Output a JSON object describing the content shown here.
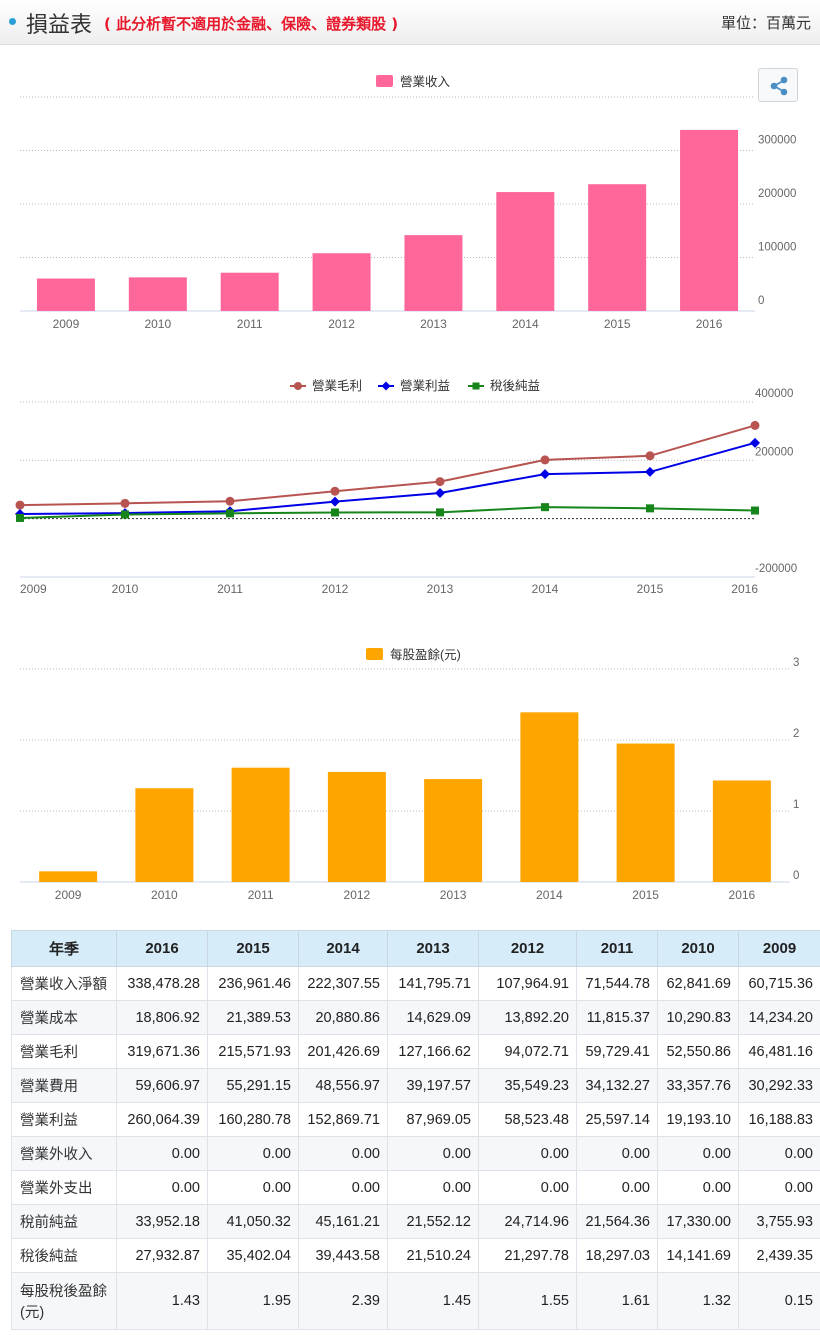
{
  "header": {
    "title": "損益表",
    "subtitle": "( 此分析暫不適用於金融、保險、證券類股 )",
    "unit": "單位：百萬元"
  },
  "icons": {
    "bullet": "bullet-dot-icon",
    "share": "share-icon"
  },
  "colors": {
    "revenue": "#ff6699",
    "gross": "#b85450",
    "operating": "#0000e6",
    "net": "#16851a",
    "eps": "#ffa500",
    "table_header": "#d6ecf9",
    "title_red": "#e8192c"
  },
  "chart_data": [
    {
      "type": "bar",
      "categories": [
        "2009",
        "2010",
        "2011",
        "2012",
        "2013",
        "2014",
        "2015",
        "2016"
      ],
      "series": [
        {
          "name": "營業收入",
          "values": [
            60715,
            62842,
            71545,
            107965,
            141796,
            222308,
            236961,
            338478
          ]
        }
      ],
      "y_ticks": [
        "0",
        "100000",
        "200000",
        "300000"
      ],
      "ylim": [
        0,
        400000
      ],
      "legend": "top-center",
      "grid": true
    },
    {
      "type": "line",
      "categories": [
        "2009",
        "2010",
        "2011",
        "2012",
        "2013",
        "2014",
        "2015",
        "2016"
      ],
      "series": [
        {
          "name": "營業毛利",
          "values": [
            46481,
            52551,
            59729,
            94073,
            127167,
            201427,
            215572,
            319671
          ]
        },
        {
          "name": "營業利益",
          "values": [
            16189,
            19193,
            25597,
            58523,
            87969,
            152870,
            160281,
            260064
          ]
        },
        {
          "name": "稅後純益",
          "values": [
            2439,
            14142,
            18297,
            21298,
            21510,
            39444,
            35402,
            27933
          ]
        }
      ],
      "y_ticks": [
        "-200000",
        "200000",
        "400000"
      ],
      "ylim": [
        -200000,
        400000
      ],
      "legend": "top-center",
      "grid": true
    },
    {
      "type": "bar",
      "categories": [
        "2009",
        "2010",
        "2011",
        "2012",
        "2013",
        "2014",
        "2015",
        "2016"
      ],
      "series": [
        {
          "name": "每股盈餘(元)",
          "values": [
            0.15,
            1.32,
            1.61,
            1.55,
            1.45,
            2.39,
            1.95,
            1.43
          ]
        }
      ],
      "y_ticks": [
        "0",
        "1",
        "2",
        "3"
      ],
      "ylim": [
        0,
        3
      ],
      "legend": "top-center",
      "grid": true
    }
  ],
  "table": {
    "headers": [
      "年季",
      "2016",
      "2015",
      "2014",
      "2013",
      "2012",
      "2011",
      "2010",
      "2009"
    ],
    "rows": [
      {
        "label": "營業收入淨額",
        "values": [
          "338,478.28",
          "236,961.46",
          "222,307.55",
          "141,795.71",
          "107,964.91",
          "71,544.78",
          "62,841.69",
          "60,715.36"
        ]
      },
      {
        "label": "營業成本",
        "values": [
          "18,806.92",
          "21,389.53",
          "20,880.86",
          "14,629.09",
          "13,892.20",
          "11,815.37",
          "10,290.83",
          "14,234.20"
        ]
      },
      {
        "label": "營業毛利",
        "values": [
          "319,671.36",
          "215,571.93",
          "201,426.69",
          "127,166.62",
          "94,072.71",
          "59,729.41",
          "52,550.86",
          "46,481.16"
        ]
      },
      {
        "label": "營業費用",
        "values": [
          "59,606.97",
          "55,291.15",
          "48,556.97",
          "39,197.57",
          "35,549.23",
          "34,132.27",
          "33,357.76",
          "30,292.33"
        ]
      },
      {
        "label": "營業利益",
        "values": [
          "260,064.39",
          "160,280.78",
          "152,869.71",
          "87,969.05",
          "58,523.48",
          "25,597.14",
          "19,193.10",
          "16,188.83"
        ]
      },
      {
        "label": "營業外收入",
        "values": [
          "0.00",
          "0.00",
          "0.00",
          "0.00",
          "0.00",
          "0.00",
          "0.00",
          "0.00"
        ]
      },
      {
        "label": "營業外支出",
        "values": [
          "0.00",
          "0.00",
          "0.00",
          "0.00",
          "0.00",
          "0.00",
          "0.00",
          "0.00"
        ]
      },
      {
        "label": "稅前純益",
        "values": [
          "33,952.18",
          "41,050.32",
          "45,161.21",
          "21,552.12",
          "24,714.96",
          "21,564.36",
          "17,330.00",
          "3,755.93"
        ]
      },
      {
        "label": "稅後純益",
        "values": [
          "27,932.87",
          "35,402.04",
          "39,443.58",
          "21,510.24",
          "21,297.78",
          "18,297.03",
          "14,141.69",
          "2,439.35"
        ]
      },
      {
        "label": "每股稅後盈餘(元)",
        "values": [
          "1.43",
          "1.95",
          "2.39",
          "1.45",
          "1.55",
          "1.61",
          "1.32",
          "0.15"
        ]
      }
    ]
  }
}
